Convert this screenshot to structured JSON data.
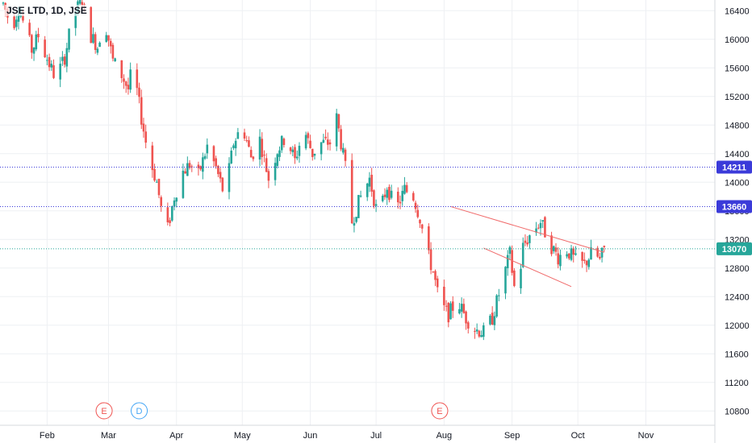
{
  "header": {
    "symbol": "JSE LTD, 1D, JSE"
  },
  "colors": {
    "up": "#26a69a",
    "down": "#ef5350",
    "grid": "#eef0f3",
    "level_line": "#3b3bd9",
    "price_line": "#26a69a",
    "channel": "#f06a6a",
    "earnings": "#ef5350",
    "dividend": "#42a5f5"
  },
  "chart_data": {
    "type": "candlestick",
    "title": "JSE LTD, 1D, JSE",
    "ylim": [
      10600,
      16550
    ],
    "y_ticks": [
      10800,
      11200,
      11600,
      12000,
      12400,
      12800,
      13200,
      13600,
      14000,
      14400,
      14800,
      15200,
      15600,
      16000,
      16400
    ],
    "x_labels": [
      "Feb",
      "Mar",
      "Apr",
      "May",
      "Jun",
      "Jul",
      "Aug",
      "Sep",
      "Oct",
      "Nov"
    ],
    "x_label_days": [
      1,
      29,
      60,
      90,
      121,
      151,
      182,
      213,
      243,
      274
    ],
    "x_domain_days": [
      -19,
      304
    ],
    "levels": [
      {
        "label": "14211",
        "value": 14211,
        "kind": "resistance"
      },
      {
        "label": "13660",
        "value": 13660,
        "kind": "resistance"
      },
      {
        "label": "13070",
        "value": 13070,
        "kind": "last-price"
      }
    ],
    "channel": [
      {
        "from": [
          185,
          13660
        ],
        "to": [
          255,
          13020
        ]
      },
      {
        "from": [
          200,
          13080
        ],
        "to": [
          240,
          12540
        ]
      }
    ],
    "events": [
      {
        "label": "E",
        "day": 27,
        "kind": "earnings"
      },
      {
        "label": "D",
        "day": 43,
        "kind": "dividend"
      },
      {
        "label": "E",
        "day": 180,
        "kind": "earnings"
      }
    ],
    "anchors": [
      [
        -19,
        16500
      ],
      [
        -15,
        16150
      ],
      [
        -12,
        16450
      ],
      [
        -6,
        15850
      ],
      [
        -3,
        16050
      ],
      [
        2,
        15650
      ],
      [
        5,
        15450
      ],
      [
        9,
        15750
      ],
      [
        13,
        16350
      ],
      [
        17,
        16550
      ],
      [
        20,
        16100
      ],
      [
        24,
        15900
      ],
      [
        27,
        16300
      ],
      [
        31,
        15700
      ],
      [
        35,
        15500
      ],
      [
        38,
        15300
      ],
      [
        40,
        15650
      ],
      [
        44,
        14900
      ],
      [
        47,
        14400
      ],
      [
        51,
        14000
      ],
      [
        54,
        13450
      ],
      [
        56,
        13350
      ],
      [
        59,
        13800
      ],
      [
        63,
        14150
      ],
      [
        66,
        14250
      ],
      [
        70,
        14100
      ],
      [
        74,
        14500
      ],
      [
        78,
        14200
      ],
      [
        82,
        13800
      ],
      [
        86,
        14550
      ],
      [
        90,
        14800
      ],
      [
        94,
        14350
      ],
      [
        98,
        14600
      ],
      [
        102,
        14050
      ],
      [
        106,
        14450
      ],
      [
        110,
        14650
      ],
      [
        114,
        14300
      ],
      [
        118,
        14750
      ],
      [
        122,
        14400
      ],
      [
        126,
        14550
      ],
      [
        130,
        14550
      ],
      [
        133,
        14900
      ],
      [
        137,
        14200
      ],
      [
        140,
        13450
      ],
      [
        144,
        13800
      ],
      [
        148,
        14050
      ],
      [
        152,
        13500
      ],
      [
        156,
        13950
      ],
      [
        160,
        13600
      ],
      [
        164,
        13900
      ],
      [
        168,
        13800
      ],
      [
        171,
        13500
      ],
      [
        174,
        13050
      ],
      [
        177,
        12750
      ],
      [
        180,
        12300
      ],
      [
        184,
        12150
      ],
      [
        188,
        12350
      ],
      [
        192,
        12100
      ],
      [
        196,
        11950
      ],
      [
        200,
        11900
      ],
      [
        204,
        12100
      ],
      [
        208,
        12550
      ],
      [
        212,
        13000
      ],
      [
        215,
        12300
      ],
      [
        218,
        13100
      ],
      [
        222,
        13300
      ],
      [
        226,
        13450
      ],
      [
        230,
        13150
      ],
      [
        234,
        12950
      ],
      [
        238,
        13050
      ],
      [
        242,
        12900
      ],
      [
        246,
        12850
      ],
      [
        250,
        13050
      ],
      [
        253,
        12900
      ],
      [
        255,
        13070
      ]
    ]
  }
}
